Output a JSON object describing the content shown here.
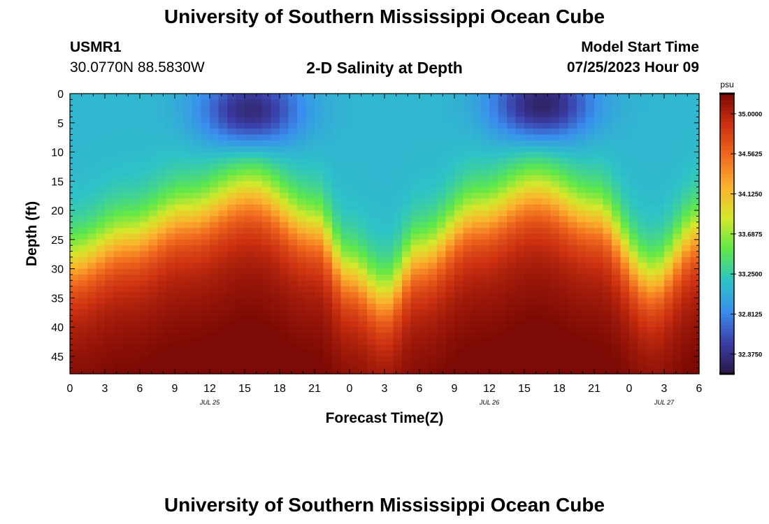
{
  "page": {
    "title_top": "University of Southern Mississippi Ocean Cube",
    "title_bottom": "University of Southern Mississippi Ocean Cube",
    "station_id": "USMR1",
    "station_coords": "30.0770N  88.5830W",
    "plot_title": "2-D Salinity at Depth",
    "model_start_label": "Model Start Time",
    "model_start_value": "07/25/2023 Hour 09"
  },
  "chart_data": {
    "type": "heatmap",
    "title": "2-D Salinity at Depth",
    "xlabel": "Forecast Time(Z)",
    "ylabel": "Depth (ft)",
    "x_range_hours": [
      0,
      54
    ],
    "x_tick_labels": [
      "0",
      "3",
      "6",
      "9",
      "12",
      "15",
      "18",
      "21",
      "0",
      "3",
      "6",
      "9",
      "12",
      "15",
      "18",
      "21",
      "0",
      "3",
      "6"
    ],
    "date_labels": [
      {
        "label": "JUL 25",
        "hour": 12
      },
      {
        "label": "JUL 26",
        "hour": 36
      },
      {
        "label": "JUL 27",
        "hour": 51
      }
    ],
    "y_range_ft": [
      0,
      48
    ],
    "y_inverted": true,
    "y_ticks": [
      0,
      5,
      10,
      15,
      20,
      25,
      30,
      35,
      40,
      45
    ],
    "colorbar": {
      "unit": "psu",
      "range": [
        32.16,
        35.22
      ],
      "tick_labels": [
        "35.0000",
        "34.5625",
        "34.1250",
        "33.6875",
        "33.2500",
        "32.8125",
        "32.3750"
      ],
      "colors": [
        "#2b1745",
        "#3b3ea8",
        "#3a8dee",
        "#2ec3c6",
        "#5ee84a",
        "#d6e72a",
        "#fbb22e",
        "#f06a1e",
        "#cc3010",
        "#7e0a05"
      ]
    },
    "fields": {
      "background_surface_psu": 33.1,
      "fresh_cores": [
        {
          "center_hour": 15.5,
          "center_depth_ft": 3,
          "min_psu": 32.3,
          "depth_extent_ft": 11
        },
        {
          "center_hour": 40.5,
          "center_depth_ft": 2,
          "min_psu": 32.25,
          "depth_extent_ft": 11
        }
      ],
      "halocline_depth_ft": [
        {
          "hour": 0,
          "depth": 29
        },
        {
          "hour": 5,
          "depth": 25
        },
        {
          "hour": 10,
          "depth": 21
        },
        {
          "hour": 15.5,
          "depth": 17
        },
        {
          "hour": 21,
          "depth": 23
        },
        {
          "hour": 24,
          "depth": 31
        },
        {
          "hour": 27,
          "depth": 35
        },
        {
          "hour": 30,
          "depth": 28
        },
        {
          "hour": 35,
          "depth": 21
        },
        {
          "hour": 40,
          "depth": 17
        },
        {
          "hour": 45,
          "depth": 21
        },
        {
          "hour": 50,
          "depth": 32
        },
        {
          "hour": 54,
          "depth": 24
        }
      ],
      "bottom_psu": 35.05
    }
  }
}
